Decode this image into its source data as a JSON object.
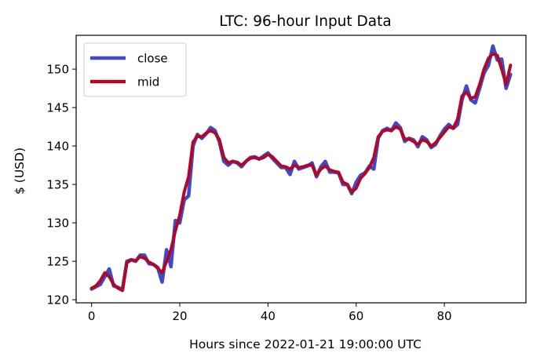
{
  "chart_data": {
    "type": "line",
    "title": "LTC: 96-hour Input Data",
    "xlabel": "Hours since 2022-01-21 19:00:00 UTC",
    "ylabel": "$ (USD)",
    "xlim": [
      -3.5,
      98.5
    ],
    "ylim": [
      119.6,
      154.4
    ],
    "x_ticks": [
      0,
      20,
      40,
      60,
      80
    ],
    "y_ticks": [
      120,
      125,
      130,
      135,
      140,
      145,
      150
    ],
    "grid": false,
    "legend_position": "upper-left",
    "series": [
      {
        "name": "close",
        "color": "#3f4ac8",
        "x": [
          0,
          1,
          2,
          3,
          4,
          5,
          6,
          7,
          8,
          9,
          10,
          11,
          12,
          13,
          14,
          15,
          16,
          17,
          18,
          19,
          20,
          21,
          22,
          23,
          24,
          25,
          26,
          27,
          28,
          29,
          30,
          31,
          32,
          33,
          34,
          35,
          36,
          37,
          38,
          39,
          40,
          41,
          42,
          43,
          44,
          45,
          46,
          47,
          48,
          49,
          50,
          51,
          52,
          53,
          54,
          55,
          56,
          57,
          58,
          59,
          60,
          61,
          62,
          63,
          64,
          65,
          66,
          67,
          68,
          69,
          70,
          71,
          72,
          73,
          74,
          75,
          76,
          77,
          78,
          79,
          80,
          81,
          82,
          83,
          84,
          85,
          86,
          87,
          88,
          89,
          90,
          91,
          92,
          93,
          94,
          95
        ],
        "values": [
          121.4,
          121.7,
          122.0,
          123.0,
          124.0,
          121.8,
          121.6,
          121.3,
          125.0,
          125.2,
          125.0,
          125.8,
          125.8,
          124.7,
          124.6,
          124.2,
          122.3,
          126.5,
          124.3,
          130.3,
          130.0,
          133.0,
          133.5,
          140.0,
          141.5,
          141.0,
          141.6,
          142.4,
          142.0,
          140.5,
          138.0,
          137.5,
          138.0,
          137.8,
          137.3,
          138.0,
          138.5,
          138.6,
          138.3,
          138.7,
          139.1,
          138.4,
          137.8,
          137.2,
          137.2,
          136.3,
          138.0,
          137.0,
          137.2,
          137.4,
          137.8,
          136.0,
          137.3,
          138.0,
          136.6,
          136.6,
          136.5,
          135.0,
          135.0,
          133.8,
          135.3,
          136.2,
          136.5,
          137.4,
          137.0,
          141.0,
          142.0,
          142.3,
          142.0,
          143.0,
          142.4,
          140.6,
          141.0,
          140.8,
          139.9,
          141.2,
          140.8,
          139.8,
          140.2,
          141.3,
          142.2,
          142.8,
          142.3,
          142.8,
          146.0,
          147.8,
          146.0,
          145.6,
          147.5,
          149.5,
          150.5,
          153.0,
          151.2,
          151.3,
          147.5,
          149.3
        ]
      },
      {
        "name": "mid",
        "color": "#b0082a",
        "x": [
          0,
          1,
          2,
          3,
          4,
          5,
          6,
          7,
          8,
          9,
          10,
          11,
          12,
          13,
          14,
          15,
          16,
          17,
          18,
          19,
          20,
          21,
          22,
          23,
          24,
          25,
          26,
          27,
          28,
          29,
          30,
          31,
          32,
          33,
          34,
          35,
          36,
          37,
          38,
          39,
          40,
          41,
          42,
          43,
          44,
          45,
          46,
          47,
          48,
          49,
          50,
          51,
          52,
          53,
          54,
          55,
          56,
          57,
          58,
          59,
          60,
          61,
          62,
          63,
          64,
          65,
          66,
          67,
          68,
          69,
          70,
          71,
          72,
          73,
          74,
          75,
          76,
          77,
          78,
          79,
          80,
          81,
          82,
          83,
          84,
          85,
          86,
          87,
          88,
          89,
          90,
          91,
          92,
          93,
          94,
          95
        ],
        "values": [
          121.5,
          121.8,
          122.5,
          123.5,
          123.0,
          122.0,
          121.5,
          121.2,
          124.8,
          125.2,
          125.1,
          125.6,
          125.4,
          124.9,
          124.6,
          124.1,
          123.5,
          125.0,
          126.5,
          129.0,
          131.0,
          134.0,
          136.0,
          140.5,
          141.3,
          141.2,
          141.7,
          142.0,
          141.7,
          140.8,
          138.5,
          137.8,
          138.0,
          137.9,
          137.5,
          138.0,
          138.4,
          138.5,
          138.3,
          138.5,
          138.9,
          138.6,
          138.0,
          137.4,
          137.3,
          137.0,
          137.5,
          137.2,
          137.3,
          137.5,
          137.5,
          136.2,
          137.0,
          137.4,
          136.9,
          136.7,
          136.6,
          135.3,
          135.0,
          134.0,
          134.5,
          135.8,
          136.4,
          137.2,
          138.5,
          141.2,
          141.9,
          142.1,
          142.0,
          142.5,
          142.2,
          140.9,
          140.9,
          140.6,
          140.2,
          140.8,
          140.6,
          140.0,
          140.4,
          141.1,
          141.8,
          142.5,
          142.3,
          143.5,
          146.5,
          147.0,
          146.2,
          146.4,
          148.0,
          150.0,
          151.4,
          152.0,
          151.8,
          150.0,
          148.0,
          150.5
        ]
      }
    ]
  }
}
